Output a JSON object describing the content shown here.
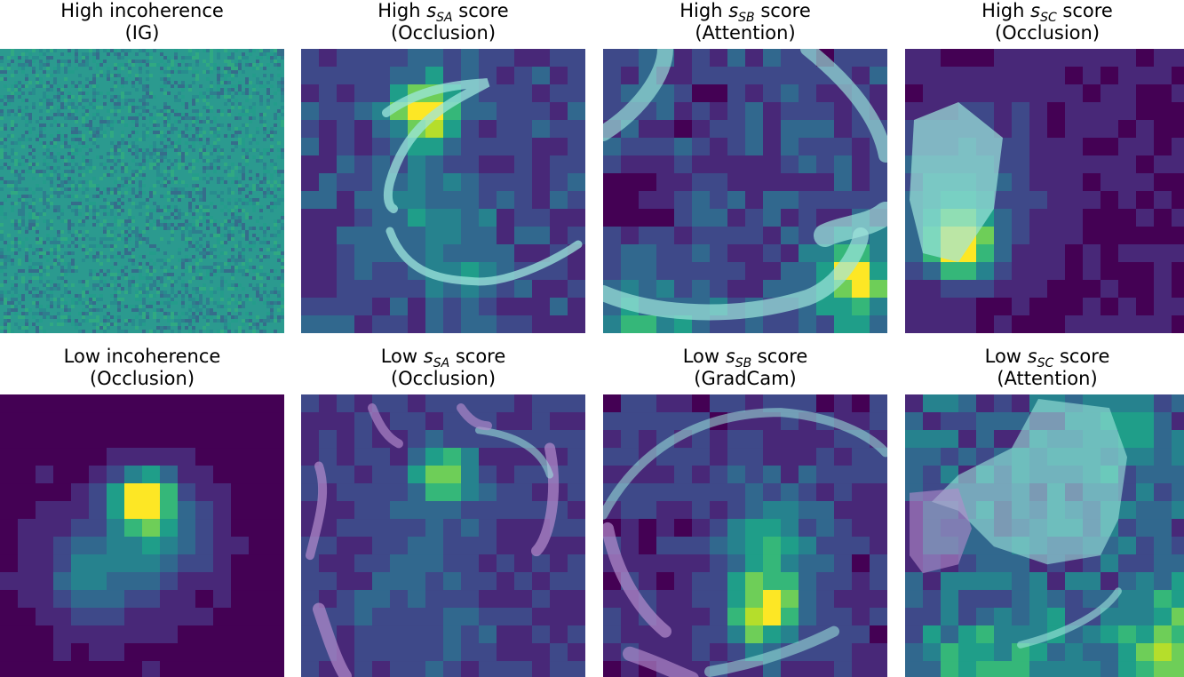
{
  "panels": [
    {
      "line1_prefix": "High incoherence",
      "line1_var": "",
      "line1_sub": "",
      "line1_suffix": "",
      "line2": "(IG)",
      "kind": "noise"
    },
    {
      "line1_prefix": "High ",
      "line1_var": "s",
      "line1_sub": "SA",
      "line1_suffix": " score",
      "line2": "(Occlusion)",
      "kind": "heat"
    },
    {
      "line1_prefix": "High ",
      "line1_var": "s",
      "line1_sub": "SB",
      "line1_suffix": " score",
      "line2": "(Attention)",
      "kind": "heat"
    },
    {
      "line1_prefix": "High ",
      "line1_var": "s",
      "line1_sub": "SC",
      "line1_suffix": " score",
      "line2": "(Occlusion)",
      "kind": "heat"
    },
    {
      "line1_prefix": "Low incoherence",
      "line1_var": "",
      "line1_sub": "",
      "line1_suffix": "",
      "line2": "(Occlusion)",
      "kind": "heat"
    },
    {
      "line1_prefix": "Low ",
      "line1_var": "s",
      "line1_sub": "SA",
      "line1_suffix": " score",
      "line2": "(Occlusion)",
      "kind": "heat"
    },
    {
      "line1_prefix": "Low ",
      "line1_var": "s",
      "line1_sub": "SB",
      "line1_suffix": " score",
      "line2": "(GradCam)",
      "kind": "heat"
    },
    {
      "line1_prefix": "Low ",
      "line1_var": "s",
      "line1_sub": "SC",
      "line1_suffix": " score",
      "line2": "(Attention)",
      "kind": "heat"
    }
  ],
  "colors": {
    "viridis": [
      "#440154",
      "#482878",
      "#3e4989",
      "#31688e",
      "#26828e",
      "#1f9e89",
      "#35b779",
      "#6ece58",
      "#b5de2b",
      "#fde725"
    ],
    "overlay_cyan": "#9ee6dc",
    "overlay_purple": "#b48ccc",
    "ig_background": "#2b9a8f"
  }
}
